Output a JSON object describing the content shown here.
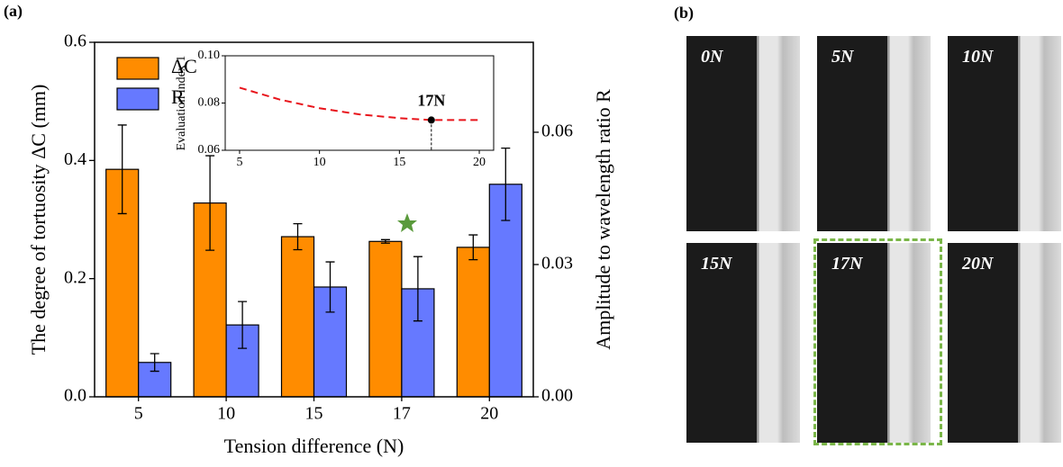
{
  "panels": {
    "a": "(a)",
    "b": "(b)"
  },
  "chart_data": [
    {
      "type": "bar",
      "categories": [
        "5",
        "10",
        "15",
        "17",
        "20"
      ],
      "series": [
        {
          "name": "ΔC",
          "color": "#ff8c00",
          "values": [
            0.385,
            0.328,
            0.271,
            0.263,
            0.253
          ],
          "errors": [
            0.075,
            0.08,
            0.022,
            0.003,
            0.021
          ]
        },
        {
          "name": "R",
          "color": "#6679ff",
          "axis": "y2",
          "values": [
            0.0078,
            0.0163,
            0.0249,
            0.0245,
            0.0482
          ],
          "errors": [
            0.002,
            0.0053,
            0.0057,
            0.0073,
            0.0082
          ]
        }
      ],
      "ylim": [
        0,
        0.6
      ],
      "yticks": [
        {
          "value": 0,
          "label": "0.0"
        },
        0.2,
        0.4,
        0.6
      ],
      "y2lim": [
        0,
        0.0804
      ],
      "y2ticks": [
        {
          "value": 0,
          "label": "0.00"
        },
        0.03,
        0.06
      ],
      "xlabel": "Tension difference (N)",
      "ylabel": "The degree of tortuosity ΔC (mm)",
      "y2label": "Amplitude to wavelength ratio R",
      "legend": "upper-left"
    },
    {
      "type": "line",
      "x": [
        5,
        7.5,
        10,
        12.5,
        15,
        17,
        20
      ],
      "series": [
        {
          "color": "#e8141b",
          "values": [
            0.0865,
            0.0815,
            0.0778,
            0.0752,
            0.0736,
            0.0728,
            0.0728
          ]
        }
      ],
      "xlim": [
        4.1,
        20.9
      ],
      "xticks": [
        5,
        10,
        15,
        20
      ],
      "ylim": [
        0.06,
        0.1
      ],
      "yticks": [
        0.06,
        0.08,
        {
          "value": 0.1,
          "label": "0.10"
        }
      ],
      "ylabel": "Evaluation index 1",
      "annotation": {
        "label": "17N",
        "x": 17,
        "y": 0.0728
      }
    }
  ],
  "photos": [
    "0N",
    "5N",
    "10N",
    "15N",
    "17N",
    "20N"
  ]
}
